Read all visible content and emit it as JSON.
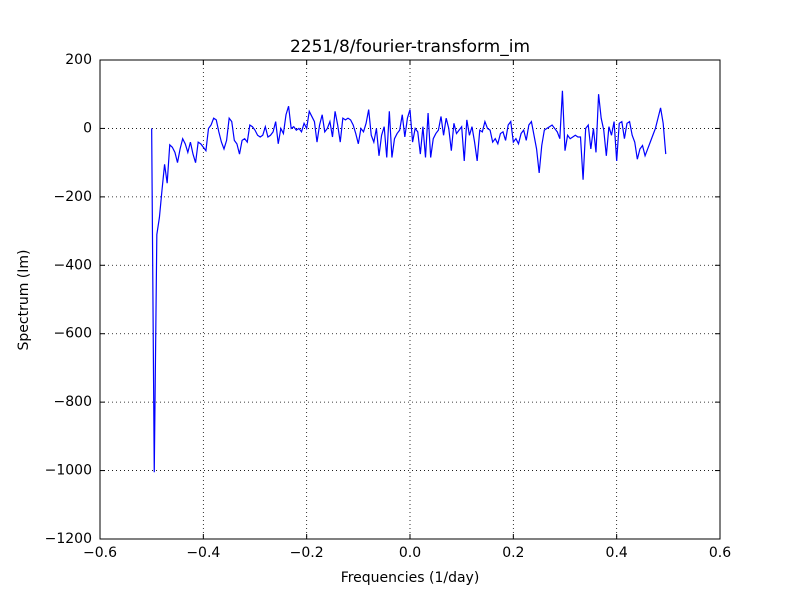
{
  "chart_data": {
    "type": "line",
    "title": "2251/8/fourier-transform_im",
    "x_label": "Frequencies (1/day)",
    "y_label": "Spectrum (Im)",
    "x": [
      -0.5,
      -0.495,
      -0.49,
      -0.485,
      -0.48,
      -0.475,
      -0.47,
      -0.465,
      -0.46,
      -0.455,
      -0.45,
      -0.445,
      -0.44,
      -0.435,
      -0.43,
      -0.425,
      -0.42,
      -0.415,
      -0.41,
      -0.405,
      -0.4,
      -0.395,
      -0.39,
      -0.385,
      -0.38,
      -0.375,
      -0.37,
      -0.365,
      -0.36,
      -0.355,
      -0.35,
      -0.345,
      -0.34,
      -0.335,
      -0.33,
      -0.325,
      -0.32,
      -0.315,
      -0.31,
      -0.305,
      -0.3,
      -0.295,
      -0.29,
      -0.285,
      -0.28,
      -0.275,
      -0.27,
      -0.265,
      -0.26,
      -0.255,
      -0.25,
      -0.245,
      -0.24,
      -0.235,
      -0.23,
      -0.225,
      -0.22,
      -0.215,
      -0.21,
      -0.205,
      -0.2,
      -0.195,
      -0.19,
      -0.185,
      -0.18,
      -0.175,
      -0.17,
      -0.165,
      -0.16,
      -0.155,
      -0.15,
      -0.145,
      -0.14,
      -0.135,
      -0.13,
      -0.125,
      -0.12,
      -0.115,
      -0.11,
      -0.105,
      -0.1,
      -0.095,
      -0.09,
      -0.085,
      -0.08,
      -0.075,
      -0.07,
      -0.065,
      -0.06,
      -0.055,
      -0.05,
      -0.045,
      -0.04,
      -0.035,
      -0.03,
      -0.025,
      -0.02,
      -0.015,
      -0.01,
      -0.005,
      0,
      0.005,
      0.01,
      0.015,
      0.02,
      0.025,
      0.03,
      0.035,
      0.04,
      0.045,
      0.05,
      0.055,
      0.06,
      0.065,
      0.07,
      0.075,
      0.08,
      0.085,
      0.09,
      0.095,
      0.1,
      0.105,
      0.11,
      0.115,
      0.12,
      0.125,
      0.13,
      0.135,
      0.14,
      0.145,
      0.15,
      0.155,
      0.16,
      0.165,
      0.17,
      0.175,
      0.18,
      0.185,
      0.19,
      0.195,
      0.2,
      0.205,
      0.21,
      0.215,
      0.22,
      0.225,
      0.23,
      0.235,
      0.24,
      0.245,
      0.25,
      0.255,
      0.26,
      0.265,
      0.27,
      0.275,
      0.28,
      0.285,
      0.29,
      0.295,
      0.3,
      0.305,
      0.31,
      0.315,
      0.32,
      0.325,
      0.33,
      0.335,
      0.34,
      0.345,
      0.35,
      0.355,
      0.36,
      0.365,
      0.37,
      0.375,
      0.38,
      0.385,
      0.39,
      0.395,
      0.4,
      0.405,
      0.41,
      0.415,
      0.42,
      0.425,
      0.43,
      0.435,
      0.44,
      0.445,
      0.45,
      0.455,
      0.46,
      0.465,
      0.47,
      0.475,
      0.48,
      0.485,
      0.49,
      0.495
    ],
    "series": [
      {
        "color": "#0000ff",
        "values": [
          0,
          -1005,
          -310,
          -260,
          -180,
          -105,
          -160,
          -48,
          -55,
          -70,
          -100,
          -60,
          -30,
          -45,
          -70,
          -40,
          -75,
          -100,
          -40,
          -45,
          -55,
          -65,
          0,
          10,
          30,
          25,
          -10,
          -40,
          -60,
          -35,
          30,
          20,
          -35,
          -45,
          -75,
          -35,
          -30,
          -40,
          10,
          5,
          -5,
          -20,
          -25,
          -20,
          5,
          -25,
          -20,
          -10,
          20,
          -45,
          0,
          -15,
          40,
          65,
          0,
          5,
          -5,
          0,
          -10,
          15,
          0,
          50,
          35,
          20,
          -40,
          10,
          40,
          -10,
          0,
          20,
          -25,
          50,
          10,
          -40,
          30,
          25,
          30,
          25,
          10,
          -15,
          -45,
          0,
          -10,
          15,
          55,
          -20,
          -40,
          0,
          -80,
          -20,
          5,
          -85,
          50,
          -85,
          -30,
          -15,
          -5,
          40,
          -25,
          30,
          55,
          -40,
          0,
          -10,
          -75,
          5,
          -85,
          45,
          -85,
          -30,
          -15,
          -5,
          35,
          -20,
          30,
          0,
          -65,
          15,
          -15,
          -5,
          5,
          -95,
          25,
          -20,
          5,
          -40,
          -95,
          -5,
          -10,
          20,
          0,
          -5,
          -40,
          -30,
          -45,
          -15,
          -10,
          -35,
          10,
          20,
          -40,
          -30,
          -45,
          -15,
          -5,
          -35,
          10,
          20,
          -20,
          -60,
          -130,
          -50,
          -5,
          0,
          5,
          10,
          0,
          -10,
          -30,
          110,
          -65,
          -20,
          -30,
          -25,
          -20,
          -25,
          -25,
          -150,
          0,
          10,
          -60,
          0,
          -70,
          100,
          30,
          -5,
          -80,
          5,
          -20,
          20,
          -95,
          15,
          20,
          -30,
          15,
          20,
          -20,
          -40,
          -90,
          -60,
          -50,
          -80,
          -60,
          -40,
          -20,
          0,
          30,
          60,
          15,
          -75
        ]
      }
    ],
    "xlim": [
      -0.6,
      0.6
    ],
    "xticks": [
      {
        "value": -0.6,
        "label": "−0.6"
      },
      {
        "value": -0.4,
        "label": "−0.4"
      },
      {
        "value": -0.2,
        "label": "−0.2"
      },
      {
        "value": 0,
        "label": "0.0"
      },
      0.2,
      0.4,
      0.6
    ],
    "ylim": [
      -1200,
      200
    ],
    "yticks": [
      {
        "value": -1200,
        "label": "−1200"
      },
      {
        "value": -1000,
        "label": "−1000"
      },
      {
        "value": -800,
        "label": "−800"
      },
      {
        "value": -600,
        "label": "−600"
      },
      {
        "value": -400,
        "label": "−400"
      },
      {
        "value": -200,
        "label": "−200"
      },
      0,
      200
    ],
    "grid": true
  }
}
